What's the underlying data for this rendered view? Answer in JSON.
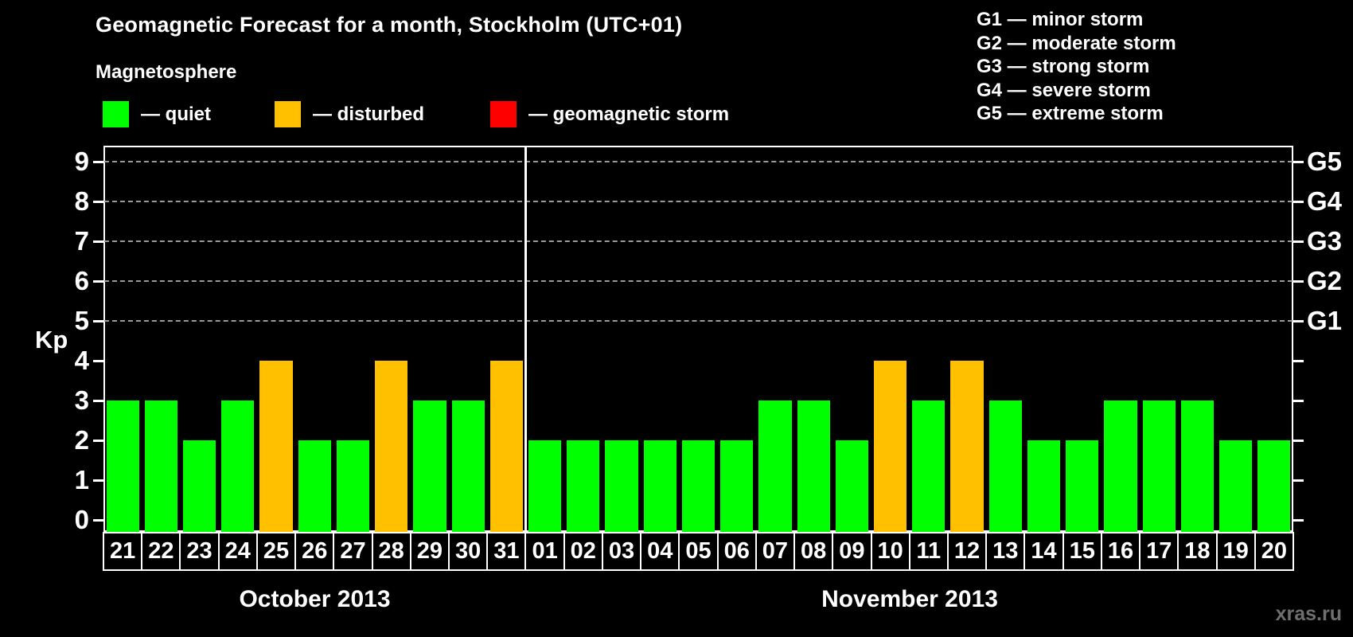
{
  "title": "Geomagnetic Forecast for a month, Stockholm (UTC+01)",
  "legend": {
    "heading": "Magnetosphere",
    "items": [
      {
        "name": "quiet",
        "label": "— quiet",
        "color": "#00ff00"
      },
      {
        "name": "disturbed",
        "label": "— disturbed",
        "color": "#ffc000"
      },
      {
        "name": "geomagnetic-storm",
        "label": "— geomagnetic storm",
        "color": "#ff0000"
      }
    ]
  },
  "storm_scale_legend": [
    "G1 — minor storm",
    "G2 — moderate storm",
    "G3 — strong storm",
    "G4 — severe storm",
    "G5 — extreme storm"
  ],
  "watermark": "xras.ru",
  "colors": {
    "background": "#000000",
    "quiet": "#00ff00",
    "disturbed": "#ffc000",
    "storm": "#ff0000",
    "grid": "#9a9a9a",
    "axis": "#ffffff",
    "watermark": "#6f6f6f"
  },
  "chart_data": {
    "type": "bar",
    "title": "Geomagnetic Forecast for a month, Stockholm (UTC+01)",
    "ylabel": "Kp",
    "ylim": [
      0,
      9
    ],
    "yticks": [
      0,
      1,
      2,
      3,
      4,
      5,
      6,
      7,
      8,
      9
    ],
    "gridlines_at_kp": [
      5,
      6,
      7,
      8,
      9
    ],
    "grid_style": "dashed horizontal lines at storm levels only",
    "right_axis_labels": [
      {
        "kp": 5,
        "label": "G1"
      },
      {
        "kp": 6,
        "label": "G2"
      },
      {
        "kp": 7,
        "label": "G3"
      },
      {
        "kp": 8,
        "label": "G4"
      },
      {
        "kp": 9,
        "label": "G5"
      }
    ],
    "legend_position": "top-left and top-right",
    "months": [
      {
        "name": "October 2013",
        "days": [
          "21",
          "22",
          "23",
          "24",
          "25",
          "26",
          "27",
          "28",
          "29",
          "30",
          "31"
        ],
        "values": [
          3,
          3,
          2,
          3,
          4,
          2,
          2,
          4,
          3,
          3,
          4
        ],
        "status": [
          "quiet",
          "quiet",
          "quiet",
          "quiet",
          "disturbed",
          "quiet",
          "quiet",
          "disturbed",
          "quiet",
          "quiet",
          "disturbed"
        ]
      },
      {
        "name": "November 2013",
        "days": [
          "01",
          "02",
          "03",
          "04",
          "05",
          "06",
          "07",
          "08",
          "09",
          "10",
          "11",
          "12",
          "13",
          "14",
          "15",
          "16",
          "17",
          "18",
          "19",
          "20"
        ],
        "values": [
          2,
          2,
          2,
          2,
          2,
          2,
          3,
          3,
          2,
          4,
          3,
          4,
          3,
          2,
          2,
          3,
          3,
          3,
          2,
          2
        ],
        "status": [
          "quiet",
          "quiet",
          "quiet",
          "quiet",
          "quiet",
          "quiet",
          "quiet",
          "quiet",
          "quiet",
          "disturbed",
          "quiet",
          "disturbed",
          "quiet",
          "quiet",
          "quiet",
          "quiet",
          "quiet",
          "quiet",
          "quiet",
          "quiet"
        ]
      }
    ]
  }
}
